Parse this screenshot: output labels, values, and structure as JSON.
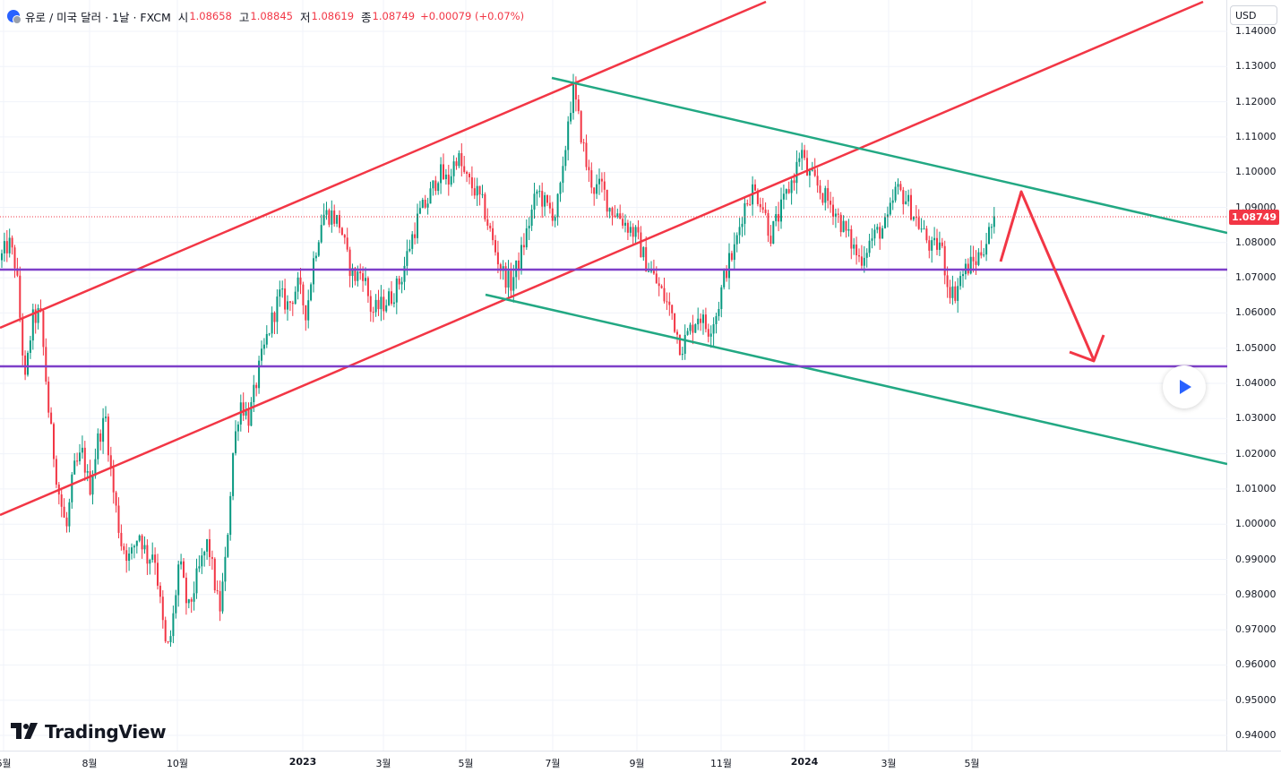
{
  "header": {
    "symbol": "유로 / 미국 달러 · 1날 · FXCM",
    "open_label": "시",
    "open": "1.08658",
    "high_label": "고",
    "high": "1.08845",
    "low_label": "저",
    "low": "1.08619",
    "close_label": "종",
    "close": "1.08749",
    "change": "+0.00079 (+0.07%)"
  },
  "currency": "USD",
  "last_price": "1.08749",
  "brand": "TradingView",
  "price_axis": {
    "ticks": [
      "1.14000",
      "1.13000",
      "1.12000",
      "1.11000",
      "1.10000",
      "1.09000",
      "1.08000",
      "1.07000",
      "1.06000",
      "1.05000",
      "1.04000",
      "1.03000",
      "1.02000",
      "1.01000",
      "1.00000",
      "0.99000",
      "0.98000",
      "0.97000",
      "0.96000",
      "0.95000",
      "0.94000"
    ]
  },
  "time_axis": {
    "labels": [
      {
        "text": "6월",
        "bold": false
      },
      {
        "text": "8월",
        "bold": false
      },
      {
        "text": "10월",
        "bold": false
      },
      {
        "text": "2023",
        "bold": true
      },
      {
        "text": "3월",
        "bold": false
      },
      {
        "text": "5월",
        "bold": false
      },
      {
        "text": "7월",
        "bold": false
      },
      {
        "text": "9월",
        "bold": false
      },
      {
        "text": "11월",
        "bold": false
      },
      {
        "text": "2024",
        "bold": true
      },
      {
        "text": "3월",
        "bold": false
      },
      {
        "text": "5월",
        "bold": false
      }
    ]
  },
  "colors": {
    "up": "#089981",
    "down": "#f23645",
    "channel_red": "#f23645",
    "channel_green": "#22a883",
    "horizontal": "#7e3fc9",
    "last_price_line": "#f23645"
  },
  "drawings": {
    "horizontal_levels": [
      1.0725,
      1.045
    ]
  },
  "chart_data": {
    "type": "candlestick",
    "symbol": "EUR/USD",
    "timeframe": "1D",
    "ylim": [
      0.937,
      1.145
    ],
    "last": 1.08749,
    "path": [
      [
        0,
        1.075
      ],
      [
        10,
        1.08
      ],
      [
        18,
        1.073
      ],
      [
        28,
        1.04
      ],
      [
        36,
        1.058
      ],
      [
        45,
        1.06
      ],
      [
        55,
        1.03
      ],
      [
        65,
        1.01
      ],
      [
        74,
        0.998
      ],
      [
        82,
        1.015
      ],
      [
        92,
        1.02
      ],
      [
        100,
        1.01
      ],
      [
        110,
        1.025
      ],
      [
        118,
        1.03
      ],
      [
        125,
        1.012
      ],
      [
        135,
        0.995
      ],
      [
        145,
        0.99
      ],
      [
        155,
        0.998
      ],
      [
        165,
        0.99
      ],
      [
        172,
        0.993
      ],
      [
        180,
        0.975
      ],
      [
        186,
        0.963
      ],
      [
        192,
        0.97
      ],
      [
        200,
        0.99
      ],
      [
        210,
        0.975
      ],
      [
        220,
        0.985
      ],
      [
        232,
        0.995
      ],
      [
        245,
        0.975
      ],
      [
        252,
        0.99
      ],
      [
        260,
        1.02
      ],
      [
        268,
        1.035
      ],
      [
        278,
        1.03
      ],
      [
        290,
        1.045
      ],
      [
        300,
        1.055
      ],
      [
        312,
        1.065
      ],
      [
        322,
        1.062
      ],
      [
        332,
        1.068
      ],
      [
        342,
        1.06
      ],
      [
        350,
        1.075
      ],
      [
        360,
        1.088
      ],
      [
        370,
        1.088
      ],
      [
        380,
        1.085
      ],
      [
        388,
        1.075
      ],
      [
        395,
        1.07
      ],
      [
        405,
        1.072
      ],
      [
        415,
        1.06
      ],
      [
        425,
        1.062
      ],
      [
        438,
        1.065
      ],
      [
        448,
        1.07
      ],
      [
        458,
        1.08
      ],
      [
        468,
        1.088
      ],
      [
        478,
        1.092
      ],
      [
        490,
        1.1
      ],
      [
        500,
        1.097
      ],
      [
        510,
        1.105
      ],
      [
        520,
        1.098
      ],
      [
        530,
        1.095
      ],
      [
        540,
        1.09
      ],
      [
        550,
        1.08
      ],
      [
        560,
        1.072
      ],
      [
        570,
        1.068
      ],
      [
        580,
        1.075
      ],
      [
        590,
        1.085
      ],
      [
        600,
        1.095
      ],
      [
        610,
        1.09
      ],
      [
        620,
        1.088
      ],
      [
        628,
        1.098
      ],
      [
        634,
        1.115
      ],
      [
        640,
        1.123
      ],
      [
        648,
        1.112
      ],
      [
        656,
        1.1
      ],
      [
        664,
        1.095
      ],
      [
        672,
        1.096
      ],
      [
        680,
        1.09
      ],
      [
        690,
        1.088
      ],
      [
        700,
        1.085
      ],
      [
        710,
        1.082
      ],
      [
        720,
        1.075
      ],
      [
        730,
        1.07
      ],
      [
        740,
        1.065
      ],
      [
        750,
        1.06
      ],
      [
        760,
        1.05
      ],
      [
        770,
        1.055
      ],
      [
        780,
        1.06
      ],
      [
        790,
        1.055
      ],
      [
        800,
        1.06
      ],
      [
        810,
        1.072
      ],
      [
        820,
        1.078
      ],
      [
        830,
        1.09
      ],
      [
        840,
        1.095
      ],
      [
        850,
        1.092
      ],
      [
        860,
        1.082
      ],
      [
        870,
        1.088
      ],
      [
        880,
        1.095
      ],
      [
        888,
        1.1
      ],
      [
        894,
        1.107
      ],
      [
        900,
        1.1
      ],
      [
        910,
        1.097
      ],
      [
        920,
        1.093
      ],
      [
        930,
        1.09
      ],
      [
        940,
        1.085
      ],
      [
        950,
        1.08
      ],
      [
        960,
        1.075
      ],
      [
        970,
        1.08
      ],
      [
        980,
        1.083
      ],
      [
        990,
        1.085
      ],
      [
        1000,
        1.095
      ],
      [
        1010,
        1.093
      ],
      [
        1020,
        1.088
      ],
      [
        1030,
        1.083
      ],
      [
        1040,
        1.078
      ],
      [
        1050,
        1.08
      ],
      [
        1058,
        1.068
      ],
      [
        1065,
        1.065
      ],
      [
        1072,
        1.07
      ],
      [
        1080,
        1.073
      ],
      [
        1090,
        1.075
      ],
      [
        1100,
        1.08
      ],
      [
        1108,
        1.085
      ],
      [
        1112,
        1.0875
      ]
    ]
  }
}
